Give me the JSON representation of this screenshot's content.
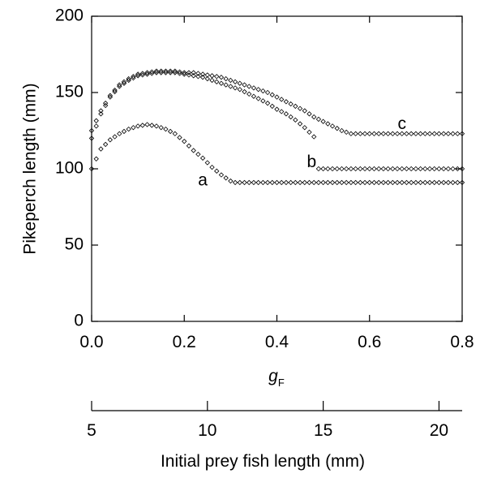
{
  "chart_data": {
    "type": "scatter",
    "title": "",
    "xlabel": "g",
    "xlabel_subscript": "F",
    "ylabel": "Pikeperch length (mm)",
    "xlim": [
      0.0,
      0.8
    ],
    "ylim": [
      0,
      200
    ],
    "xticks": [
      "0.0",
      "0.2",
      "0.4",
      "0.6",
      "0.8"
    ],
    "yticks": [
      "0",
      "50",
      "100",
      "150",
      "200"
    ],
    "secondary_x_axis": {
      "label": "Initial prey fish length (mm)",
      "range": [
        5,
        21
      ],
      "ticks": [
        "5",
        "10",
        "15",
        "20"
      ]
    },
    "grid": false,
    "legend": "none",
    "marker": "open-diamond",
    "series": [
      {
        "label": "a",
        "x": [
          0.0,
          0.02,
          0.04,
          0.06,
          0.08,
          0.1,
          0.12,
          0.14,
          0.16,
          0.18,
          0.2,
          0.22,
          0.24,
          0.26,
          0.28,
          0.3,
          0.31,
          0.35,
          0.4,
          0.45,
          0.5,
          0.55,
          0.6,
          0.65,
          0.7,
          0.75,
          0.8
        ],
        "y": [
          100,
          113,
          119,
          123,
          126,
          128,
          129,
          128,
          126,
          123,
          118,
          112,
          107,
          101,
          96,
          92,
          91,
          91,
          91,
          91,
          91,
          91,
          91,
          91,
          91,
          91,
          91
        ]
      },
      {
        "label": "b",
        "x": [
          0.0,
          0.02,
          0.04,
          0.06,
          0.08,
          0.1,
          0.12,
          0.14,
          0.16,
          0.18,
          0.2,
          0.22,
          0.24,
          0.26,
          0.28,
          0.3,
          0.32,
          0.34,
          0.36,
          0.38,
          0.4,
          0.42,
          0.44,
          0.46,
          0.48
        ],
        "y": [
          120,
          136,
          147,
          154,
          158,
          161,
          162,
          163,
          163,
          163,
          162,
          161,
          160,
          158,
          156,
          154,
          152,
          149,
          146,
          143,
          139,
          136,
          132,
          127,
          121
        ]
      },
      {
        "label": "",
        "x": [
          0.49,
          0.52,
          0.55,
          0.6,
          0.65,
          0.7,
          0.75,
          0.8
        ],
        "y": [
          100,
          100,
          100,
          100,
          100,
          100,
          100,
          100
        ]
      },
      {
        "label": "c",
        "x": [
          0.0,
          0.02,
          0.04,
          0.06,
          0.08,
          0.1,
          0.12,
          0.14,
          0.16,
          0.18,
          0.2,
          0.22,
          0.24,
          0.26,
          0.28,
          0.3,
          0.32,
          0.34,
          0.36,
          0.38,
          0.4,
          0.42,
          0.44,
          0.46,
          0.48,
          0.5,
          0.52,
          0.54,
          0.56,
          0.6,
          0.65,
          0.7,
          0.75,
          0.8
        ],
        "y": [
          125,
          138,
          148,
          155,
          159,
          162,
          163,
          164,
          164,
          164,
          163,
          163,
          162,
          161,
          160,
          158,
          156,
          154,
          152,
          150,
          147,
          144,
          141,
          138,
          134,
          131,
          128,
          125,
          123,
          123,
          123,
          123,
          123,
          123
        ]
      }
    ]
  }
}
